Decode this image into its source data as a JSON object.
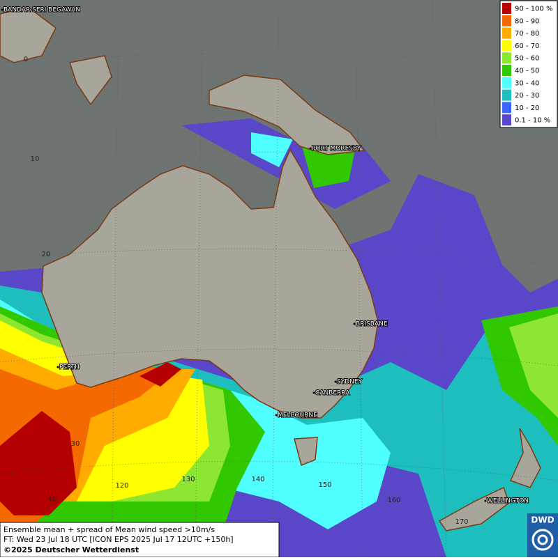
{
  "legend": {
    "title": null,
    "entries": [
      {
        "label": "90 - 100 %",
        "color": "#b40000"
      },
      {
        "label": "80 - 90",
        "color": "#f46a00"
      },
      {
        "label": "70 - 80",
        "color": "#ffab00"
      },
      {
        "label": "60 - 70",
        "color": "#ffff00"
      },
      {
        "label": "50 - 60",
        "color": "#8ce632"
      },
      {
        "label": "40 - 50",
        "color": "#32c800"
      },
      {
        "label": "30 - 40",
        "color": "#50ffff"
      },
      {
        "label": "20 - 30",
        "color": "#1ebebe"
      },
      {
        "label": "10 - 20",
        "color": "#3c64ff"
      },
      {
        "label": "0.1 - 10 %",
        "color": "#5a46c8"
      }
    ]
  },
  "cities": [
    "BANDAR SERI BEGAWAN",
    "PORT MORESBY",
    "BRISBANE",
    "PERTH",
    "SYDNEY",
    "CANBERRA",
    "MELBOURNE",
    "WELLINGTON"
  ],
  "latitude_labels": [
    "0",
    "10",
    "20",
    "30",
    "40"
  ],
  "longitude_labels": [
    "120",
    "130",
    "140",
    "150",
    "160",
    "170"
  ],
  "footer": {
    "line1": "Ensemble mean + spread of Mean wind speed >10m/s",
    "line2": "FT: Wed 23 Jul 18 UTC [ICON EPS 2025 Jul 17 12UTC +150h]",
    "line3": "©2025 Deutscher Wetterdienst"
  },
  "logo": "DWD"
}
